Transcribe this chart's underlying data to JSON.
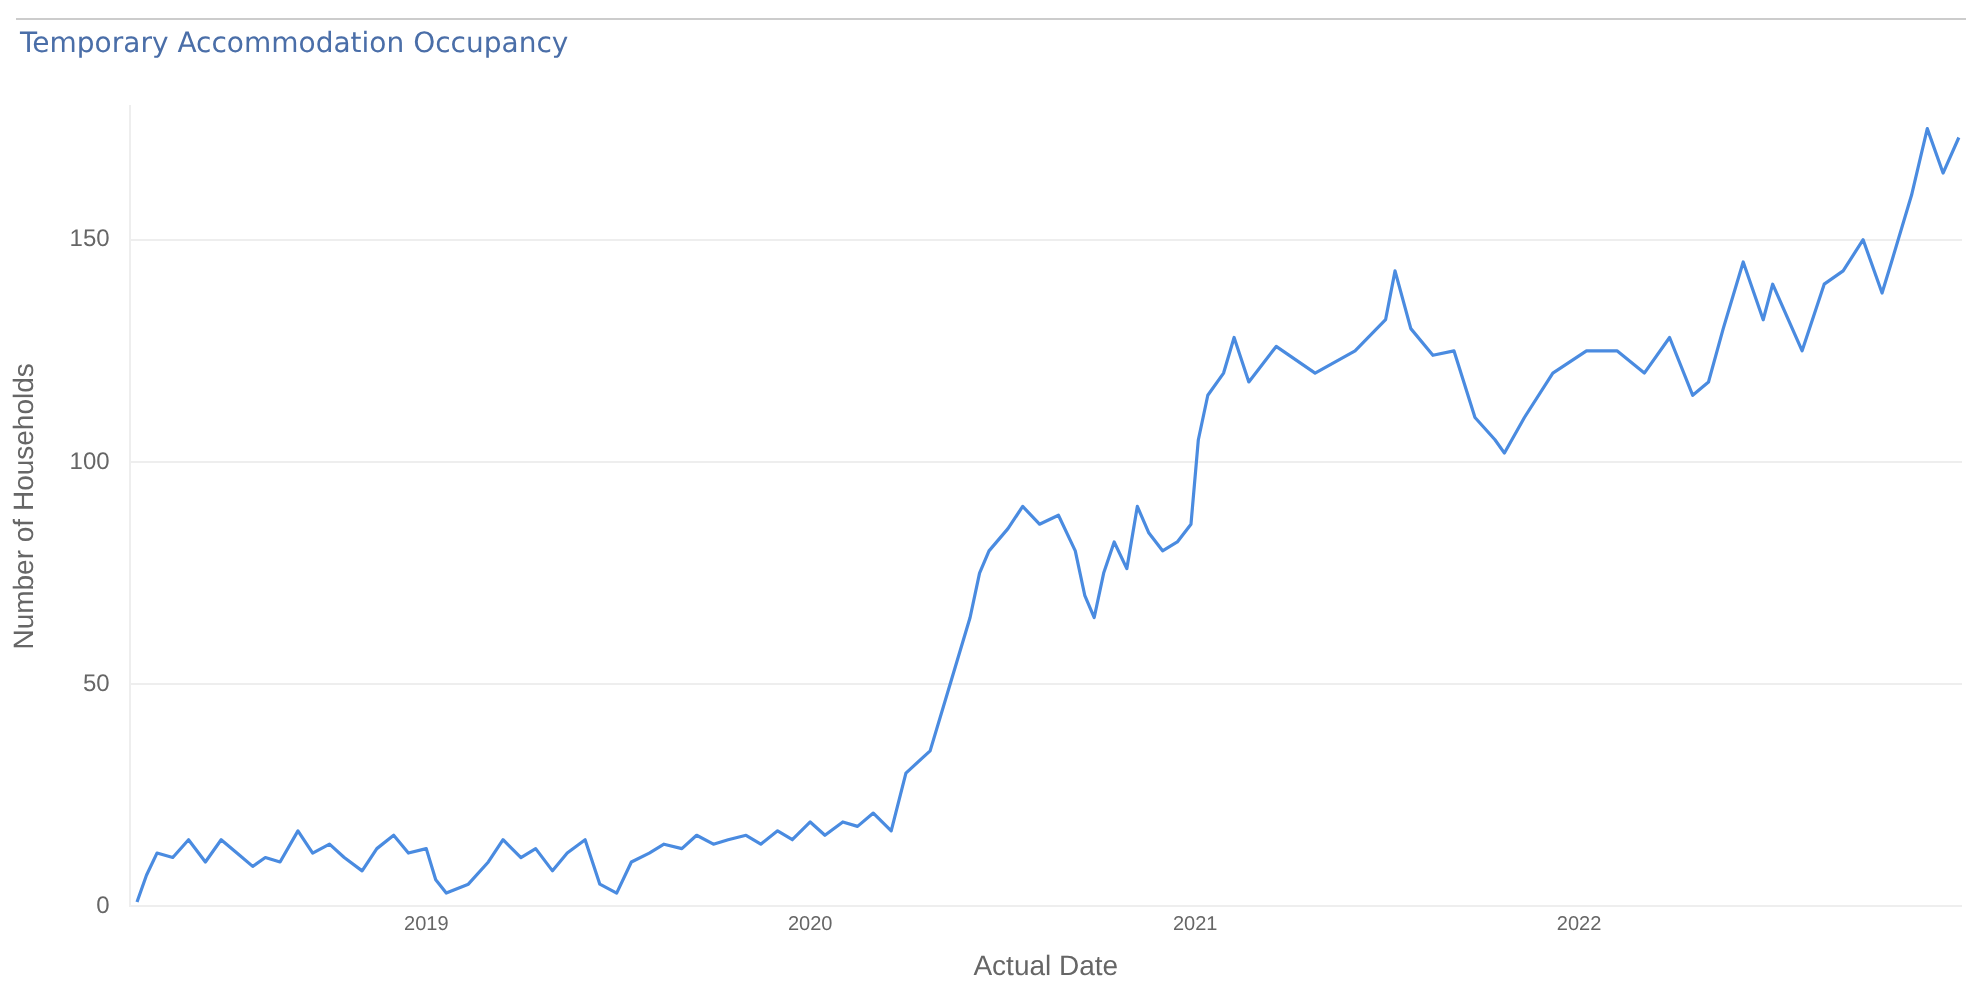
{
  "chart_data": {
    "type": "line",
    "title": "Temporary Accommodation Occupancy",
    "xlabel": "Actual Date",
    "ylabel": "Number of Households",
    "x": [
      "2018-04-01",
      "2018-04-10",
      "2018-04-20",
      "2018-05-05",
      "2018-05-20",
      "2018-06-05",
      "2018-06-20",
      "2018-07-05",
      "2018-07-20",
      "2018-08-01",
      "2018-08-15",
      "2018-09-01",
      "2018-09-15",
      "2018-10-01",
      "2018-10-15",
      "2018-11-01",
      "2018-11-15",
      "2018-12-01",
      "2018-12-15",
      "2019-01-01",
      "2019-01-10",
      "2019-01-20",
      "2019-02-10",
      "2019-03-01",
      "2019-03-15",
      "2019-04-01",
      "2019-04-15",
      "2019-05-01",
      "2019-05-15",
      "2019-06-01",
      "2019-06-15",
      "2019-07-01",
      "2019-07-15",
      "2019-08-01",
      "2019-08-15",
      "2019-09-01",
      "2019-09-15",
      "2019-10-01",
      "2019-10-15",
      "2019-11-01",
      "2019-11-15",
      "2019-12-01",
      "2019-12-15",
      "2020-01-01",
      "2020-01-15",
      "2020-02-01",
      "2020-02-15",
      "2020-03-01",
      "2020-03-18",
      "2020-04-01",
      "2020-04-24",
      "2020-05-13",
      "2020-06-01",
      "2020-06-10",
      "2020-06-19",
      "2020-07-07",
      "2020-07-21",
      "2020-08-06",
      "2020-08-24",
      "2020-09-09",
      "2020-09-18",
      "2020-09-27",
      "2020-10-06",
      "2020-10-16",
      "2020-10-28",
      "2020-11-07",
      "2020-11-18",
      "2020-12-01",
      "2020-12-15",
      "2020-12-28",
      "2021-01-04",
      "2021-01-13",
      "2021-01-28",
      "2021-02-07",
      "2021-02-21",
      "2021-03-19",
      "2021-04-25",
      "2021-06-02",
      "2021-07-01",
      "2021-07-10",
      "2021-07-25",
      "2021-08-15",
      "2021-09-04",
      "2021-09-24",
      "2021-10-13",
      "2021-10-22",
      "2021-11-10",
      "2021-12-07",
      "2022-01-08",
      "2022-02-06",
      "2022-03-04",
      "2022-03-28",
      "2022-04-19",
      "2022-05-04",
      "2022-05-18",
      "2022-06-06",
      "2022-06-25",
      "2022-07-04",
      "2022-08-01",
      "2022-08-22",
      "2022-09-09",
      "2022-09-28",
      "2022-10-16",
      "2022-10-25",
      "2022-11-13",
      "2022-11-28",
      "2022-12-13",
      "2022-12-28"
    ],
    "series": [
      {
        "color": "#4a8be0",
        "values": [
          1,
          7,
          12,
          11,
          15,
          10,
          15,
          12,
          9,
          11,
          10,
          17,
          12,
          14,
          11,
          8,
          13,
          16,
          12,
          13,
          6,
          3,
          5,
          10,
          15,
          11,
          13,
          8,
          12,
          15,
          5,
          3,
          10,
          12,
          14,
          13,
          16,
          14,
          15,
          16,
          14,
          17,
          15,
          19,
          16,
          19,
          18,
          21,
          17,
          30,
          35,
          50,
          65,
          75,
          80,
          85,
          90,
          86,
          88,
          80,
          70,
          65,
          75,
          82,
          76,
          90,
          84,
          80,
          82,
          86,
          105,
          115,
          120,
          128,
          118,
          126,
          120,
          125,
          132,
          143,
          130,
          124,
          125,
          110,
          105,
          102,
          110,
          120,
          125,
          125,
          120,
          128,
          115,
          118,
          130,
          145,
          132,
          140,
          125,
          140,
          143,
          150,
          138,
          145,
          160,
          175,
          165,
          173
        ]
      }
    ],
    "xlim": [
      "2018-03-25",
      "2022-12-31"
    ],
    "xticks": [
      "2019",
      "2020",
      "2021",
      "2022"
    ],
    "ylim": [
      0,
      180
    ],
    "yticks": [
      0,
      50,
      100,
      150
    ],
    "grid": "y",
    "legend": false,
    "marker": "none",
    "line_style": "solid"
  }
}
